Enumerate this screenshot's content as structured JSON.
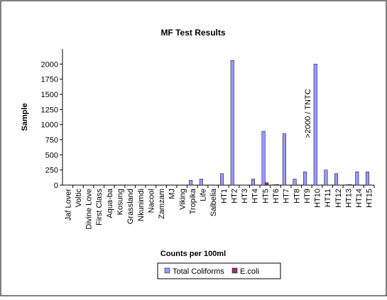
{
  "chart_data": {
    "type": "bar",
    "title": "MF Test Results",
    "xlabel": "Counts per 100ml",
    "ylabel": "Sample",
    "annotation": ">2000 / TNTC",
    "categories": [
      "Jaf Lover",
      "Voltic",
      "Divine Love",
      "First Class",
      "Aqua-ba",
      "Kosung",
      "Grassland",
      "Nkunimdi",
      "Nacool",
      "Zamzam",
      "MJ",
      "Viking",
      "Tropika",
      "Life",
      "Salbelia",
      "HT1",
      "HT2",
      "HT3",
      "HT4",
      "HT5",
      "HT6",
      "HT7",
      "HT8",
      "HT9",
      "HT10",
      "HT11",
      "HT12",
      "HT13",
      "HT14",
      "HT15"
    ],
    "series": [
      {
        "name": "Total Coliforms",
        "color": "#9999ff",
        "values": [
          0,
          0,
          0,
          0,
          0,
          0,
          0,
          0,
          0,
          0,
          0,
          0,
          80,
          100,
          0,
          190,
          2060,
          0,
          100,
          890,
          5,
          850,
          100,
          220,
          2000,
          250,
          190,
          5,
          220,
          220
        ]
      },
      {
        "name": "E.coli",
        "color": "#993366",
        "values": [
          0,
          0,
          0,
          0,
          0,
          0,
          0,
          0,
          0,
          0,
          0,
          0,
          0,
          0,
          0,
          0,
          0,
          0,
          0,
          40,
          10,
          0,
          0,
          0,
          0,
          0,
          0,
          10,
          0,
          0
        ]
      }
    ],
    "ylim": [
      0,
      2250
    ],
    "yticks": [
      0,
      250,
      500,
      750,
      1000,
      1250,
      1500,
      1750,
      2000
    ],
    "legend": "bottom"
  }
}
